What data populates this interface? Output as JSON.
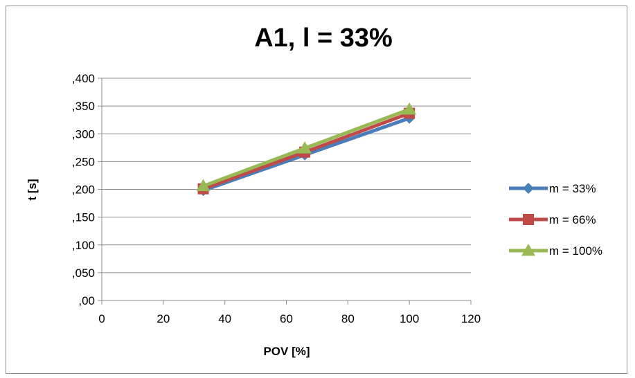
{
  "chart_data": {
    "type": "line",
    "title": "A1, l = 33%",
    "xlabel": "POV [%]",
    "ylabel": "t [s]",
    "xlim": [
      0,
      120
    ],
    "ylim": [
      0,
      0.4
    ],
    "x_ticks": [
      0,
      20,
      40,
      60,
      80,
      100,
      120
    ],
    "x_tick_labels": [
      "0",
      "20",
      "40",
      "60",
      "80",
      "100",
      "120"
    ],
    "y_ticks": [
      0,
      0.05,
      0.1,
      0.15,
      0.2,
      0.25,
      0.3,
      0.35,
      0.4
    ],
    "y_tick_labels": [
      ",00",
      ",050",
      ",100",
      ",150",
      ",200",
      ",250",
      ",300",
      ",350",
      ",400"
    ],
    "grid": "horizontal",
    "legend_position": "right",
    "x": [
      33,
      66,
      100
    ],
    "series": [
      {
        "name": "m = 33%",
        "values": [
          0.198,
          0.262,
          0.328
        ],
        "color": "#4a7ebb",
        "marker": "diamond"
      },
      {
        "name": "m = 66%",
        "values": [
          0.201,
          0.267,
          0.337
        ],
        "color": "#be4b48",
        "marker": "square"
      },
      {
        "name": "m = 100%",
        "values": [
          0.206,
          0.274,
          0.344
        ],
        "color": "#98b954",
        "marker": "triangle"
      }
    ]
  }
}
